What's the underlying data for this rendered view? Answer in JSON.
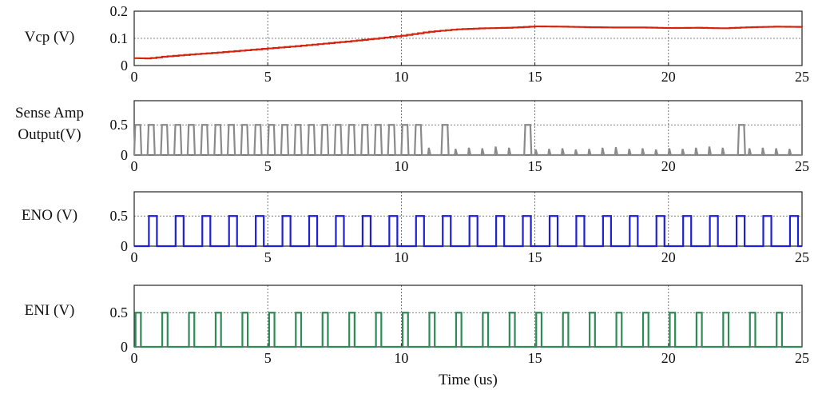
{
  "chart_data": [
    {
      "type": "line",
      "ylabel": "Vcp (V)",
      "color": "#d4230f",
      "xlim": [
        0,
        25
      ],
      "ylim": [
        0,
        0.2
      ],
      "xticks": [
        "0",
        "5",
        "10",
        "15",
        "20",
        "25"
      ],
      "yticks": [
        "0",
        "0.1",
        "0.2"
      ],
      "style": "step",
      "series": [
        {
          "name": "Vcp",
          "x": [
            0,
            0.5,
            1,
            2,
            3,
            4,
            5,
            6,
            7,
            8,
            9,
            10,
            11,
            12,
            13,
            14,
            15,
            16,
            17,
            18,
            19,
            20,
            21,
            22,
            23,
            24,
            25
          ],
          "y": [
            0.027,
            0.026,
            0.032,
            0.04,
            0.047,
            0.055,
            0.063,
            0.071,
            0.08,
            0.089,
            0.099,
            0.11,
            0.124,
            0.133,
            0.137,
            0.139,
            0.144,
            0.143,
            0.141,
            0.14,
            0.14,
            0.138,
            0.139,
            0.137,
            0.141,
            0.143,
            0.142
          ]
        }
      ]
    },
    {
      "type": "line",
      "ylabel": "Sense Amp Output(V)",
      "ylabel_lines": [
        "Sense Amp",
        "Output(V)"
      ],
      "color": "#8a8a8a",
      "xlim": [
        0,
        25
      ],
      "ylim": [
        0,
        0.9
      ],
      "xticks": [
        "0",
        "5",
        "10",
        "15",
        "20",
        "25"
      ],
      "yticks": [
        "0",
        "0.5"
      ],
      "style": "pulses",
      "series": [
        {
          "name": "Sense Amp Output",
          "pulse_starts": [
            0,
            0.5,
            1,
            1.5,
            2,
            2.5,
            3,
            3.5,
            4,
            4.5,
            5,
            5.5,
            6,
            6.5,
            7,
            7.5,
            8,
            8.5,
            9,
            9.5,
            10,
            10.5,
            11.5,
            14.6,
            22.6
          ],
          "pulse_width": 0.23,
          "pulse_high": 0.5,
          "spike_times": [
            11,
            12,
            12.5,
            13,
            13.5,
            14,
            15,
            15.5,
            16,
            16.5,
            17,
            17.5,
            18,
            18.5,
            19,
            19.5,
            20,
            20.5,
            21,
            21.5,
            22,
            23,
            23.5,
            24,
            24.5
          ],
          "spike_heights": [
            0.12,
            0.1,
            0.12,
            0.11,
            0.14,
            0.12,
            0.09,
            0.1,
            0.11,
            0.09,
            0.1,
            0.12,
            0.13,
            0.1,
            0.11,
            0.09,
            0.11,
            0.1,
            0.12,
            0.14,
            0.12,
            0.11,
            0.12,
            0.11,
            0.1
          ]
        }
      ]
    },
    {
      "type": "line",
      "ylabel": "ENO (V)",
      "color": "#1f1fd6",
      "xlim": [
        0,
        25
      ],
      "ylim": [
        0,
        0.9
      ],
      "xticks": [
        "0",
        "5",
        "10",
        "15",
        "20",
        "25"
      ],
      "yticks": [
        "0",
        "0.5"
      ],
      "style": "square",
      "series": [
        {
          "name": "ENO",
          "period": 1,
          "first_rise": 0.55,
          "high_width": 0.3,
          "high": 0.5
        }
      ]
    },
    {
      "type": "line",
      "ylabel": "ENI (V)",
      "color": "#2e8b57",
      "xlim": [
        0,
        25
      ],
      "ylim": [
        0,
        0.9
      ],
      "xticks": [
        "0",
        "5",
        "10",
        "15",
        "20",
        "25"
      ],
      "yticks": [
        "0",
        "0.5"
      ],
      "xlabel": "Time (us)",
      "style": "square",
      "series": [
        {
          "name": "ENI",
          "period": 1,
          "first_rise": 0.05,
          "high_width": 0.2,
          "high": 0.5,
          "extra_rise": [
            24.05
          ],
          "extra_fall": [
            24.25
          ]
        }
      ]
    }
  ]
}
